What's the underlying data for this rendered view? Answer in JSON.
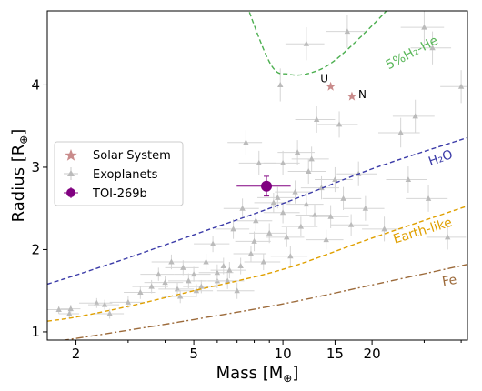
{
  "chart_data": {
    "type": "scatter",
    "xlabel": "Mass [M",
    "xlabel_sub": "⊕",
    "xlabel_end": "]",
    "ylabel": "Radius [R",
    "ylabel_sub": "⊕",
    "ylabel_end": "]",
    "x_scale": "log",
    "xlim": [
      1.6,
      42
    ],
    "ylim": [
      0.9,
      4.9
    ],
    "x_ticks": [
      2,
      5,
      10,
      15,
      20
    ],
    "y_ticks": [
      1,
      2,
      3,
      4
    ],
    "grid": false,
    "legend_position": "center-left",
    "legend": [
      {
        "label": "Solar System",
        "marker": "star",
        "color": "#c98b8b"
      },
      {
        "label": "Exoplanets",
        "marker": "triangle",
        "color": "#bbbbbb"
      },
      {
        "label": "TOI-269b",
        "marker": "circle-errorbar",
        "color": "#800080"
      }
    ],
    "composition_curves": [
      {
        "label": "5%H₂-He",
        "color": "#4caf50",
        "style": "dashed",
        "points": [
          [
            7.0,
            5.3
          ],
          [
            9.0,
            4.28
          ],
          [
            10.5,
            4.13
          ],
          [
            12.5,
            4.15
          ],
          [
            15.0,
            4.3
          ],
          [
            20.0,
            4.72
          ],
          [
            25.0,
            5.1
          ],
          [
            30.0,
            5.5
          ]
        ]
      },
      {
        "label": "H₂O",
        "color": "#3b3ba8",
        "style": "dashed",
        "points": [
          [
            1.6,
            1.58
          ],
          [
            2.0,
            1.69
          ],
          [
            3.0,
            1.9
          ],
          [
            5.0,
            2.18
          ],
          [
            10.0,
            2.56
          ],
          [
            20.0,
            2.98
          ],
          [
            42.0,
            3.36
          ]
        ]
      },
      {
        "label": "Earth-like",
        "color": "#e0a000",
        "style": "dashed",
        "points": [
          [
            1.6,
            1.13
          ],
          [
            2.0,
            1.18
          ],
          [
            3.0,
            1.31
          ],
          [
            5.0,
            1.5
          ],
          [
            10.0,
            1.76
          ],
          [
            20.0,
            2.14
          ],
          [
            42.0,
            2.53
          ]
        ]
      },
      {
        "label": "Fe",
        "color": "#9c6a3a",
        "style": "dashdot",
        "points": [
          [
            1.6,
            0.87
          ],
          [
            2.0,
            0.92
          ],
          [
            3.0,
            1.02
          ],
          [
            5.0,
            1.15
          ],
          [
            10.0,
            1.34
          ],
          [
            20.0,
            1.57
          ],
          [
            42.0,
            1.82
          ]
        ]
      }
    ],
    "solar_system": [
      {
        "name": "U",
        "mass": 14.5,
        "radius": 3.98
      },
      {
        "name": "N",
        "mass": 17.1,
        "radius": 3.86
      }
    ],
    "toi": {
      "name": "TOI-269b",
      "mass": 8.8,
      "mass_err": 1.4,
      "radius": 2.77,
      "radius_err": 0.12
    },
    "exoplanets": [
      [
        1.75,
        1.27,
        0.15,
        0.05
      ],
      [
        1.9,
        1.22,
        0.15,
        0.05
      ],
      [
        1.92,
        1.28,
        0.15,
        0.05
      ],
      [
        2.35,
        1.35,
        0.3,
        0.06
      ],
      [
        2.5,
        1.33,
        0.3,
        0.06
      ],
      [
        2.6,
        1.22,
        0.3,
        0.06
      ],
      [
        3.0,
        1.36,
        0.4,
        0.07
      ],
      [
        3.3,
        1.48,
        0.4,
        0.08
      ],
      [
        3.6,
        1.55,
        0.5,
        0.08
      ],
      [
        3.8,
        1.7,
        0.5,
        0.08
      ],
      [
        4.0,
        1.6,
        0.6,
        0.08
      ],
      [
        4.2,
        1.85,
        0.6,
        0.09
      ],
      [
        4.4,
        1.52,
        0.6,
        0.08
      ],
      [
        4.5,
        1.43,
        0.6,
        0.08
      ],
      [
        4.6,
        1.78,
        0.6,
        0.09
      ],
      [
        4.8,
        1.62,
        0.7,
        0.09
      ],
      [
        5.0,
        1.7,
        0.7,
        0.09
      ],
      [
        5.1,
        1.5,
        0.7,
        0.08
      ],
      [
        5.3,
        1.55,
        0.7,
        0.08
      ],
      [
        5.5,
        1.85,
        0.8,
        0.1
      ],
      [
        5.8,
        2.07,
        0.8,
        0.1
      ],
      [
        6.0,
        1.62,
        0.8,
        0.09
      ],
      [
        6.0,
        1.72,
        0.8,
        0.1
      ],
      [
        6.3,
        1.8,
        0.9,
        0.1
      ],
      [
        6.5,
        1.62,
        0.9,
        0.1
      ],
      [
        6.6,
        1.75,
        0.9,
        0.1
      ],
      [
        6.8,
        2.25,
        0.9,
        0.12
      ],
      [
        7.0,
        1.5,
        1.0,
        0.1
      ],
      [
        7.2,
        1.8,
        1.0,
        0.1
      ],
      [
        7.3,
        2.5,
        1.0,
        0.12
      ],
      [
        7.5,
        3.3,
        1.0,
        0.15
      ],
      [
        7.8,
        1.95,
        1.0,
        0.1
      ],
      [
        8.0,
        2.1,
        1.1,
        0.12
      ],
      [
        8.1,
        2.35,
        1.1,
        0.12
      ],
      [
        8.3,
        3.05,
        1.2,
        0.15
      ],
      [
        8.6,
        1.85,
        1.2,
        0.1
      ],
      [
        9.0,
        2.2,
        1.3,
        0.12
      ],
      [
        9.3,
        2.57,
        1.3,
        0.12
      ],
      [
        9.6,
        2.63,
        1.4,
        0.13
      ],
      [
        10.0,
        2.45,
        1.4,
        0.13
      ],
      [
        10.0,
        3.05,
        1.4,
        0.15
      ],
      [
        10.3,
        2.15,
        1.5,
        0.12
      ],
      [
        10.6,
        1.92,
        1.5,
        0.12
      ],
      [
        11.0,
        2.7,
        1.6,
        0.14
      ],
      [
        11.2,
        3.18,
        1.6,
        0.15
      ],
      [
        11.5,
        2.28,
        1.6,
        0.12
      ],
      [
        12.0,
        2.55,
        1.7,
        0.14
      ],
      [
        12.2,
        2.95,
        1.8,
        0.15
      ],
      [
        12.5,
        3.1,
        1.8,
        0.15
      ],
      [
        12.8,
        2.42,
        1.8,
        0.13
      ],
      [
        13.0,
        3.58,
        2.0,
        0.16
      ],
      [
        13.5,
        2.75,
        2.0,
        0.14
      ],
      [
        14.0,
        2.12,
        2.0,
        0.12
      ],
      [
        14.5,
        2.4,
        2.2,
        0.14
      ],
      [
        15.0,
        2.85,
        2.2,
        0.15
      ],
      [
        15.5,
        3.52,
        2.4,
        0.16
      ],
      [
        16.0,
        2.62,
        2.4,
        0.14
      ],
      [
        16.5,
        4.65,
        2.5,
        0.2
      ],
      [
        17.0,
        2.3,
        2.5,
        0.13
      ],
      [
        18.0,
        2.92,
        2.8,
        0.15
      ],
      [
        19.0,
        2.5,
        3.0,
        0.15
      ],
      [
        22.0,
        2.25,
        3.5,
        0.15
      ],
      [
        25.0,
        3.42,
        4.0,
        0.18
      ],
      [
        26.5,
        2.85,
        4.2,
        0.16
      ],
      [
        28.0,
        3.62,
        4.5,
        0.2
      ],
      [
        30.0,
        4.7,
        5.0,
        0.22
      ],
      [
        31.0,
        2.62,
        5.0,
        0.16
      ],
      [
        32.0,
        4.45,
        5.0,
        0.2
      ],
      [
        36.0,
        2.15,
        5.5,
        0.15
      ],
      [
        40.0,
        3.98,
        6.0,
        0.2
      ],
      [
        9.8,
        4.0,
        1.5,
        0.2
      ],
      [
        12.0,
        4.5,
        1.8,
        0.2
      ]
    ]
  }
}
